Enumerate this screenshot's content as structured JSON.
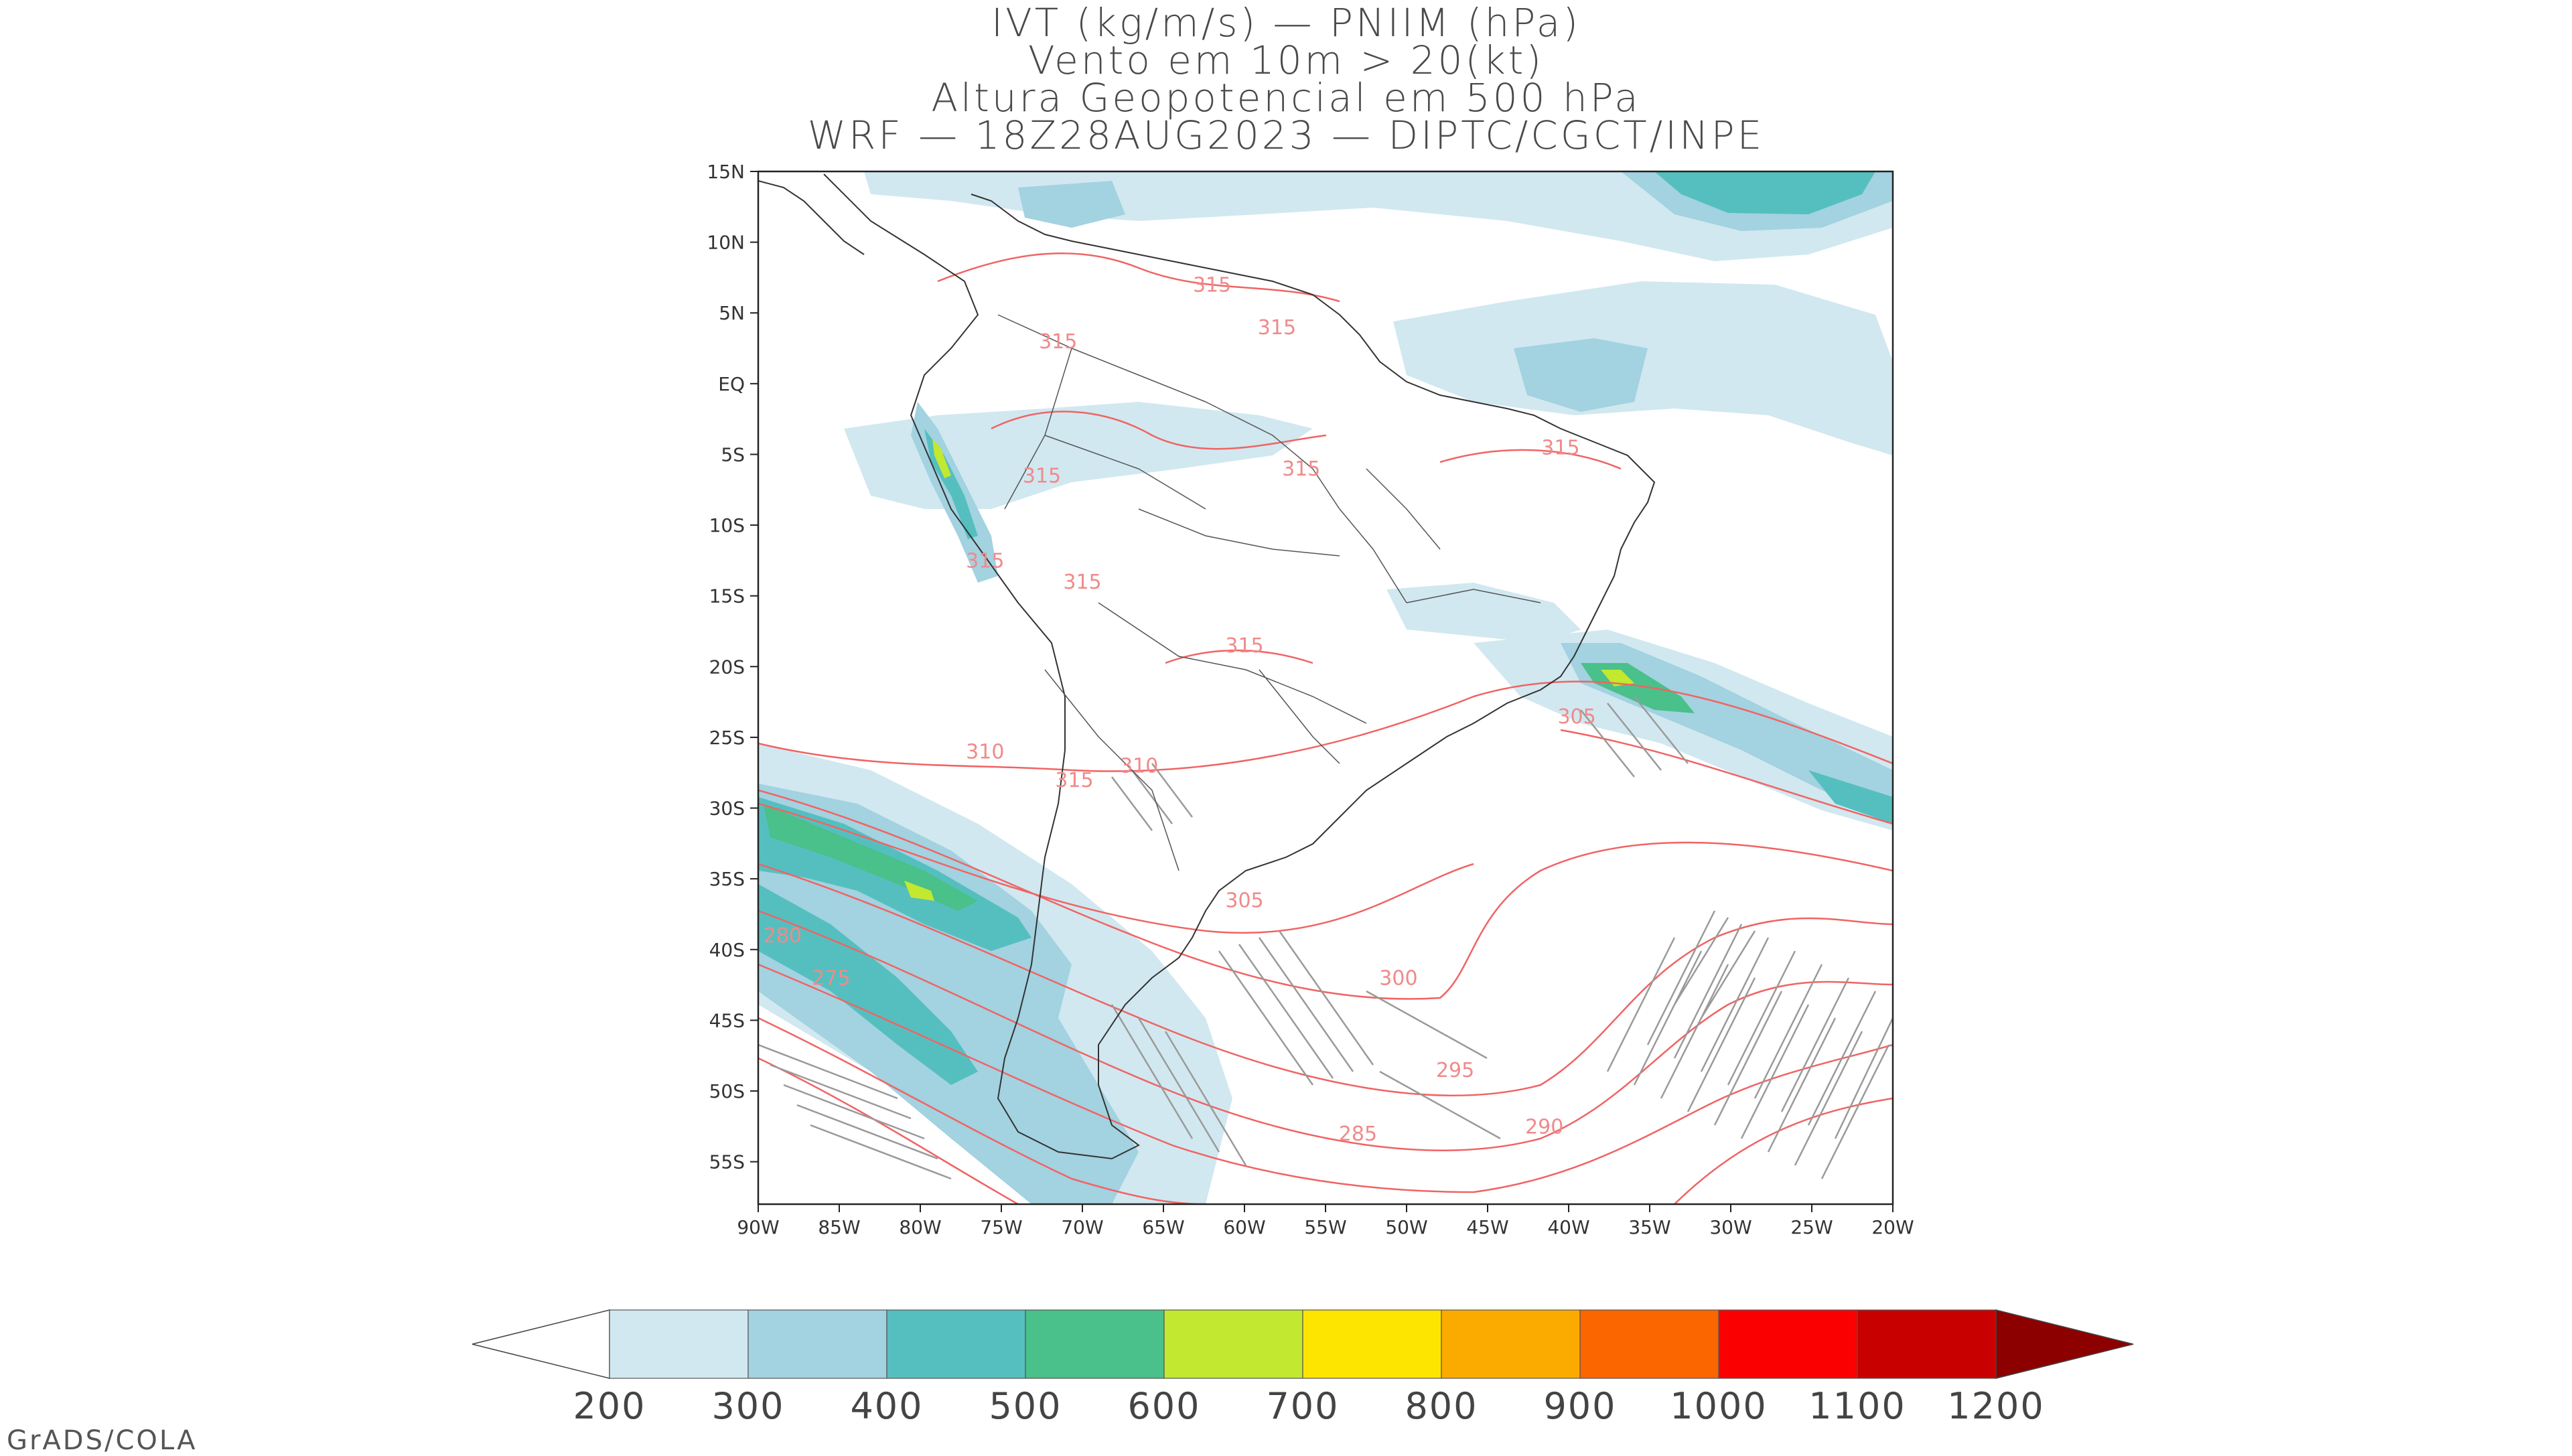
{
  "title": {
    "line1": "IVT (kg/m/s) — PNIIM (hPa)",
    "line2": "Vento em 10m > 20(kt)",
    "line3": "Altura Geopotencial em 500 hPa",
    "line4": "WRF — 18Z28AUG2023 — DIPTC/CGCT/INPE"
  },
  "map": {
    "lat_labels": [
      "15N",
      "10N",
      "5N",
      "EQ",
      "5S",
      "10S",
      "15S",
      "20S",
      "25S",
      "30S",
      "35S",
      "40S",
      "45S",
      "50S",
      "55S"
    ],
    "lat_values": [
      15,
      10,
      5,
      0,
      -5,
      -10,
      -15,
      -20,
      -25,
      -30,
      -35,
      -40,
      -45,
      -50,
      -55
    ],
    "lon_labels": [
      "90W",
      "85W",
      "80W",
      "75W",
      "70W",
      "65W",
      "60W",
      "55W",
      "50W",
      "45W",
      "40W",
      "35W",
      "30W",
      "25W",
      "20W"
    ],
    "lon_values": [
      -90,
      -85,
      -80,
      -75,
      -70,
      -65,
      -60,
      -55,
      -50,
      -45,
      -40,
      -35,
      -30,
      -25,
      -20
    ],
    "extent": {
      "lon_min": -90,
      "lon_max": -20,
      "lat_min": -58,
      "lat_max": 15
    },
    "contour_labels": [
      {
        "text": "315",
        "lon": -62.0,
        "lat": 6.5
      },
      {
        "text": "315",
        "lon": -58.0,
        "lat": 3.5
      },
      {
        "text": "315",
        "lon": -71.5,
        "lat": 2.5
      },
      {
        "text": "315",
        "lon": -40.5,
        "lat": -5.0
      },
      {
        "text": "315",
        "lon": -56.5,
        "lat": -6.5
      },
      {
        "text": "315",
        "lon": -72.5,
        "lat": -7.0
      },
      {
        "text": "315",
        "lon": -76.0,
        "lat": -13.0
      },
      {
        "text": "315",
        "lon": -70.0,
        "lat": -14.5
      },
      {
        "text": "315",
        "lon": -60.0,
        "lat": -19.0
      },
      {
        "text": "305",
        "lon": -39.5,
        "lat": -24.0
      },
      {
        "text": "310",
        "lon": -76.0,
        "lat": -26.5
      },
      {
        "text": "310",
        "lon": -66.5,
        "lat": -27.5
      },
      {
        "text": "315",
        "lon": -70.5,
        "lat": -28.5
      },
      {
        "text": "305",
        "lon": -60.0,
        "lat": -37.0
      },
      {
        "text": "280",
        "lon": -88.5,
        "lat": -39.5
      },
      {
        "text": "275",
        "lon": -85.5,
        "lat": -42.5
      },
      {
        "text": "300",
        "lon": -50.5,
        "lat": -42.5
      },
      {
        "text": "295",
        "lon": -47.0,
        "lat": -49.0
      },
      {
        "text": "290",
        "lon": -41.5,
        "lat": -53.0
      },
      {
        "text": "285",
        "lon": -53.0,
        "lat": -53.5
      }
    ]
  },
  "colorbar": {
    "labels": [
      "200",
      "300",
      "400",
      "500",
      "600",
      "700",
      "800",
      "900",
      "1000",
      "1100",
      "1200"
    ],
    "colors": [
      "#d1e8f0",
      "#a3d2e0",
      "#55bfbf",
      "#4ac08a",
      "#c2e830",
      "#fde500",
      "#fbab00",
      "#fb6600",
      "#fb0000",
      "#c80000",
      "#8c0000"
    ],
    "under_color": "#ffffff"
  },
  "footer": {
    "credit": "GrADS/COLA"
  }
}
